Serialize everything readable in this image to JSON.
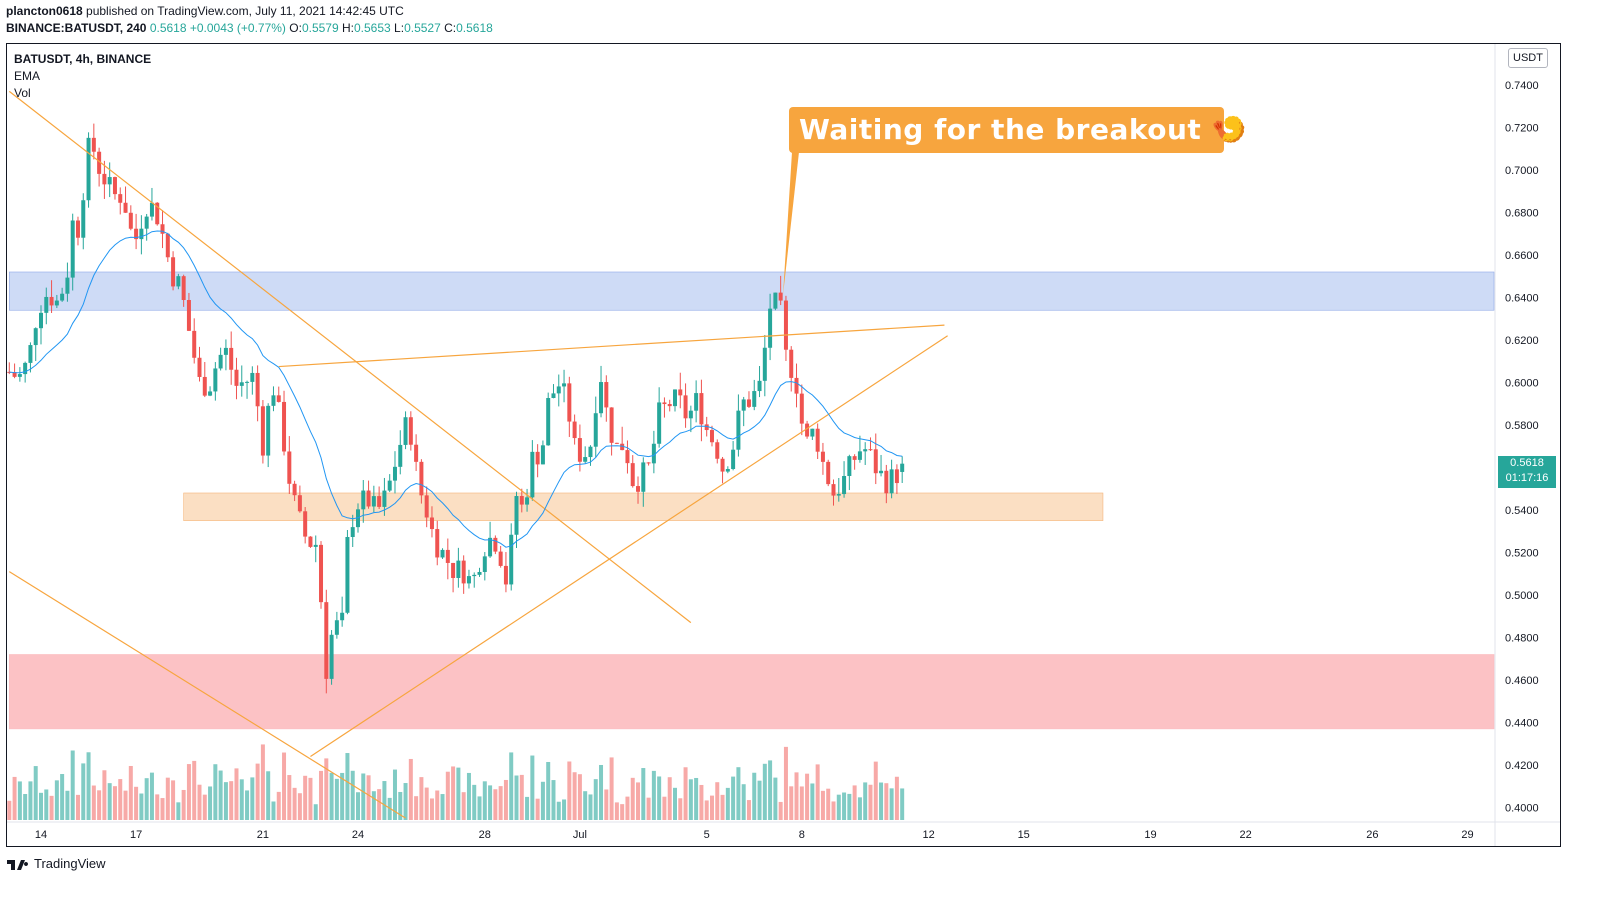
{
  "header": {
    "publisher": "plancton0618",
    "published_text": " published on TradingView.com, July 11, 2021 14:42:45 UTC",
    "symbol_full": "BINANCE:BATUSDT, 240",
    "price": "0.5618",
    "change": "+0.0043 (+0.77%)",
    "open_label": "O:",
    "open": "0.5579",
    "high_label": "H:",
    "high": "0.5653",
    "low_label": "L:",
    "low": "0.5527",
    "close_label": "C:",
    "close": "0.5618"
  },
  "legend": {
    "title": "BATUSDT, 4h, BINANCE",
    "ind1": "EMA",
    "ind2": "Vol"
  },
  "currency": "USDT",
  "price_tag": {
    "price": "0.5618",
    "countdown": "01:17:16"
  },
  "callout": {
    "text": "Waiting for the breakout 🍤"
  },
  "footer": {
    "brand": "TradingView"
  },
  "colors": {
    "up": "#26a69a",
    "down": "#ef5350",
    "ema": "#2196f3",
    "trendline": "#f7a53e",
    "resistance_zone": "#c9d7f5",
    "support_zone": "#fbdcbd",
    "red_zone": "#fcbbbf"
  },
  "chart_data": {
    "type": "candlestick",
    "title": "BATUSDT, 4h, BINANCE",
    "ylim": [
      0.395,
      0.745
    ],
    "yticks": [
      "0.7400",
      "0.7200",
      "0.7000",
      "0.6800",
      "0.6600",
      "0.6400",
      "0.6200",
      "0.6000",
      "0.5800",
      "0.5600",
      "0.5400",
      "0.5200",
      "0.5000",
      "0.4800",
      "0.4600",
      "0.4400",
      "0.4200",
      "0.4000"
    ],
    "xticks": [
      {
        "label": "14",
        "day": 0
      },
      {
        "label": "17",
        "day": 3
      },
      {
        "label": "21",
        "day": 7
      },
      {
        "label": "24",
        "day": 10
      },
      {
        "label": "28",
        "day": 14
      },
      {
        "label": "Jul",
        "day": 17
      },
      {
        "label": "5",
        "day": 21
      },
      {
        "label": "8",
        "day": 24
      },
      {
        "label": "12",
        "day": 28
      },
      {
        "label": "15",
        "day": 31
      },
      {
        "label": "19",
        "day": 35
      },
      {
        "label": "22",
        "day": 38
      },
      {
        "label": "26",
        "day": 42
      },
      {
        "label": "29",
        "day": 45
      }
    ],
    "x_unit": "days since Jun 14 2021 (4h bars)",
    "zones": [
      {
        "name": "resistance",
        "from": 0.634,
        "to": 0.652,
        "day_start": -1,
        "day_end": 46
      },
      {
        "name": "support",
        "from": 0.535,
        "to": 0.548,
        "day_start": 4.5,
        "day_end": 33.5
      },
      {
        "name": "red",
        "from": 0.437,
        "to": 0.472,
        "day_start": -1,
        "day_end": 46
      }
    ],
    "trendlines": [
      {
        "d1": -1,
        "p1": 0.737,
        "d2": 20.5,
        "p2": 0.487
      },
      {
        "d1": -1,
        "p1": 0.511,
        "d2": 11.5,
        "p2": 0.395
      },
      {
        "d1": 7.5,
        "p1": 0.6075,
        "d2": 28.5,
        "p2": 0.627
      },
      {
        "d1": 8.5,
        "p1": 0.424,
        "d2": 28.6,
        "p2": 0.622
      }
    ],
    "anchors": [
      [
        -1,
        0.605
      ],
      [
        -0.7,
        0.602
      ],
      [
        -0.4,
        0.61
      ],
      [
        -0.1,
        0.635
      ],
      [
        0.2,
        0.642
      ],
      [
        0.5,
        0.638
      ],
      [
        0.8,
        0.648
      ],
      [
        1.0,
        0.675
      ],
      [
        1.2,
        0.672
      ],
      [
        1.45,
        0.708
      ],
      [
        1.6,
        0.713
      ],
      [
        1.8,
        0.702
      ],
      [
        2.0,
        0.696
      ],
      [
        2.3,
        0.688
      ],
      [
        2.6,
        0.688
      ],
      [
        2.8,
        0.672
      ],
      [
        3.0,
        0.668
      ],
      [
        3.3,
        0.684
      ],
      [
        3.6,
        0.682
      ],
      [
        3.9,
        0.666
      ],
      [
        4.1,
        0.652
      ],
      [
        4.4,
        0.645
      ],
      [
        4.7,
        0.622
      ],
      [
        5.0,
        0.6
      ],
      [
        5.3,
        0.598
      ],
      [
        5.6,
        0.612
      ],
      [
        5.9,
        0.615
      ],
      [
        6.1,
        0.598
      ],
      [
        6.4,
        0.6
      ],
      [
        6.7,
        0.603
      ],
      [
        7.0,
        0.571
      ],
      [
        7.3,
        0.6
      ],
      [
        7.6,
        0.578
      ],
      [
        7.9,
        0.548
      ],
      [
        8.2,
        0.533
      ],
      [
        8.4,
        0.525
      ],
      [
        8.7,
        0.524
      ],
      [
        9.0,
        0.465
      ],
      [
        9.2,
        0.484
      ],
      [
        9.5,
        0.487
      ],
      [
        9.7,
        0.531
      ],
      [
        10.0,
        0.543
      ],
      [
        10.3,
        0.545
      ],
      [
        10.6,
        0.539
      ],
      [
        10.9,
        0.547
      ],
      [
        11.1,
        0.558
      ],
      [
        11.4,
        0.575
      ],
      [
        11.6,
        0.583
      ],
      [
        11.9,
        0.552
      ],
      [
        12.2,
        0.538
      ],
      [
        12.4,
        0.526
      ],
      [
        12.7,
        0.519
      ],
      [
        13.0,
        0.512
      ],
      [
        13.3,
        0.512
      ],
      [
        13.6,
        0.505
      ],
      [
        13.9,
        0.52
      ],
      [
        14.1,
        0.527
      ],
      [
        14.4,
        0.525
      ],
      [
        14.7,
        0.505
      ],
      [
        15.0,
        0.547
      ],
      [
        15.2,
        0.54
      ],
      [
        15.5,
        0.564
      ],
      [
        15.8,
        0.568
      ],
      [
        16.0,
        0.59
      ],
      [
        16.3,
        0.6
      ],
      [
        16.6,
        0.591
      ],
      [
        16.8,
        0.57
      ],
      [
        17.1,
        0.565
      ],
      [
        17.4,
        0.573
      ],
      [
        17.6,
        0.61
      ],
      [
        17.9,
        0.58
      ],
      [
        18.2,
        0.568
      ],
      [
        18.4,
        0.572
      ],
      [
        18.7,
        0.552
      ],
      [
        19.0,
        0.557
      ],
      [
        19.2,
        0.56
      ],
      [
        19.5,
        0.585
      ],
      [
        19.8,
        0.59
      ],
      [
        20.1,
        0.592
      ],
      [
        20.4,
        0.583
      ],
      [
        20.7,
        0.592
      ],
      [
        21.0,
        0.578
      ],
      [
        21.3,
        0.57
      ],
      [
        21.5,
        0.56
      ],
      [
        21.8,
        0.568
      ],
      [
        22.1,
        0.59
      ],
      [
        22.4,
        0.592
      ],
      [
        22.7,
        0.599
      ],
      [
        23.0,
        0.636
      ],
      [
        23.3,
        0.637
      ],
      [
        23.5,
        0.612
      ],
      [
        23.8,
        0.603
      ],
      [
        24.1,
        0.57
      ],
      [
        24.4,
        0.578
      ],
      [
        24.7,
        0.56
      ],
      [
        25.0,
        0.548
      ],
      [
        25.3,
        0.553
      ],
      [
        25.6,
        0.563
      ],
      [
        25.9,
        0.57
      ],
      [
        26.1,
        0.567
      ],
      [
        26.4,
        0.558
      ],
      [
        26.7,
        0.553
      ],
      [
        27.0,
        0.557
      ],
      [
        27.2,
        0.562
      ]
    ]
  }
}
